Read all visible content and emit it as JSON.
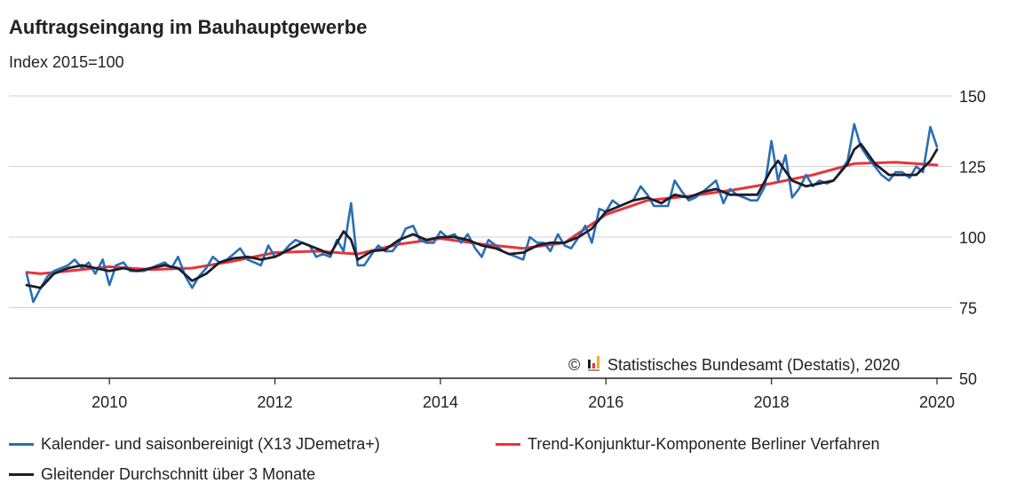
{
  "header": {
    "title": "Auftragseingang im Bauhauptgewerbe",
    "subtitle": "Index 2015=100"
  },
  "source": "Statistisches Bundesamt (Destatis), 2020",
  "colors": {
    "blue": "#2a6eb4",
    "red": "#e8343a",
    "black": "#1b1d2a",
    "grid": "#cfcfcf"
  },
  "chart_data": {
    "type": "line",
    "x_ticks": [
      "2010",
      "2012",
      "2014",
      "2016",
      "2018",
      "2020"
    ],
    "y_ticks": [
      "150",
      "125",
      "100",
      "75",
      "50"
    ],
    "ylim": [
      50,
      150
    ],
    "x_range": [
      2009.0,
      2020.0
    ],
    "grid": true,
    "legend_position": "bottom",
    "series": [
      {
        "name": "Kalender- und saisonbereinigt (X13 JDemetra+)",
        "color": "#2a6eb4",
        "points": [
          [
            2009.0,
            87
          ],
          [
            2009.08,
            77
          ],
          [
            2009.17,
            82
          ],
          [
            2009.25,
            86
          ],
          [
            2009.33,
            88
          ],
          [
            2009.42,
            89
          ],
          [
            2009.5,
            90
          ],
          [
            2009.58,
            92
          ],
          [
            2009.67,
            89
          ],
          [
            2009.75,
            91
          ],
          [
            2009.83,
            87
          ],
          [
            2009.92,
            92
          ],
          [
            2010.0,
            83
          ],
          [
            2010.08,
            90
          ],
          [
            2010.17,
            91
          ],
          [
            2010.25,
            88
          ],
          [
            2010.33,
            88
          ],
          [
            2010.42,
            88
          ],
          [
            2010.5,
            89
          ],
          [
            2010.58,
            90
          ],
          [
            2010.67,
            91
          ],
          [
            2010.75,
            89
          ],
          [
            2010.83,
            93
          ],
          [
            2010.92,
            86
          ],
          [
            2011.0,
            82
          ],
          [
            2011.08,
            86
          ],
          [
            2011.17,
            89
          ],
          [
            2011.25,
            93
          ],
          [
            2011.33,
            91
          ],
          [
            2011.42,
            92
          ],
          [
            2011.5,
            94
          ],
          [
            2011.58,
            96
          ],
          [
            2011.67,
            92
          ],
          [
            2011.75,
            91
          ],
          [
            2011.83,
            90
          ],
          [
            2011.92,
            97
          ],
          [
            2012.0,
            93
          ],
          [
            2012.08,
            94
          ],
          [
            2012.17,
            97
          ],
          [
            2012.25,
            99
          ],
          [
            2012.33,
            98
          ],
          [
            2012.42,
            97
          ],
          [
            2012.5,
            93
          ],
          [
            2012.58,
            94
          ],
          [
            2012.67,
            93
          ],
          [
            2012.75,
            99
          ],
          [
            2012.83,
            95
          ],
          [
            2012.92,
            112
          ],
          [
            2013.0,
            90
          ],
          [
            2013.08,
            90
          ],
          [
            2013.17,
            94
          ],
          [
            2013.25,
            97
          ],
          [
            2013.33,
            95
          ],
          [
            2013.42,
            95
          ],
          [
            2013.5,
            98
          ],
          [
            2013.58,
            103
          ],
          [
            2013.67,
            104
          ],
          [
            2013.75,
            99
          ],
          [
            2013.83,
            98
          ],
          [
            2013.92,
            98
          ],
          [
            2014.0,
            102
          ],
          [
            2014.08,
            100
          ],
          [
            2014.17,
            101
          ],
          [
            2014.25,
            98
          ],
          [
            2014.33,
            101
          ],
          [
            2014.42,
            96
          ],
          [
            2014.5,
            93
          ],
          [
            2014.58,
            99
          ],
          [
            2014.67,
            97
          ],
          [
            2014.75,
            95
          ],
          [
            2014.83,
            94
          ],
          [
            2014.92,
            93
          ],
          [
            2015.0,
            92
          ],
          [
            2015.08,
            100
          ],
          [
            2015.17,
            98
          ],
          [
            2015.25,
            98
          ],
          [
            2015.33,
            95
          ],
          [
            2015.42,
            101
          ],
          [
            2015.5,
            97
          ],
          [
            2015.58,
            96
          ],
          [
            2015.67,
            100
          ],
          [
            2015.75,
            104
          ],
          [
            2015.83,
            98
          ],
          [
            2015.92,
            110
          ],
          [
            2016.0,
            109
          ],
          [
            2016.08,
            113
          ],
          [
            2016.17,
            111
          ],
          [
            2016.25,
            112
          ],
          [
            2016.33,
            113
          ],
          [
            2016.42,
            118
          ],
          [
            2016.5,
            115
          ],
          [
            2016.58,
            111
          ],
          [
            2016.67,
            111
          ],
          [
            2016.75,
            111
          ],
          [
            2016.83,
            120
          ],
          [
            2016.92,
            116
          ],
          [
            2017.0,
            113
          ],
          [
            2017.08,
            114
          ],
          [
            2017.17,
            116
          ],
          [
            2017.25,
            118
          ],
          [
            2017.33,
            120
          ],
          [
            2017.42,
            112
          ],
          [
            2017.5,
            117
          ],
          [
            2017.58,
            115
          ],
          [
            2017.67,
            114
          ],
          [
            2017.75,
            113
          ],
          [
            2017.83,
            113
          ],
          [
            2017.92,
            118
          ],
          [
            2018.0,
            134
          ],
          [
            2018.08,
            120
          ],
          [
            2018.17,
            129
          ],
          [
            2018.25,
            114
          ],
          [
            2018.33,
            117
          ],
          [
            2018.42,
            122
          ],
          [
            2018.5,
            118
          ],
          [
            2018.58,
            120
          ],
          [
            2018.67,
            119
          ],
          [
            2018.75,
            120
          ],
          [
            2018.83,
            123
          ],
          [
            2018.92,
            127
          ],
          [
            2019.0,
            140
          ],
          [
            2019.08,
            132
          ],
          [
            2019.17,
            128
          ],
          [
            2019.25,
            125
          ],
          [
            2019.33,
            122
          ],
          [
            2019.42,
            120
          ],
          [
            2019.5,
            123
          ],
          [
            2019.58,
            123
          ],
          [
            2019.67,
            121
          ],
          [
            2019.75,
            125
          ],
          [
            2019.83,
            123
          ],
          [
            2019.92,
            139
          ],
          [
            2020.0,
            132
          ]
        ]
      },
      {
        "name": "Trend-Konjunktur-Komponente Berliner Verfahren",
        "color": "#e8343a",
        "points": [
          [
            2009.0,
            87.5
          ],
          [
            2009.17,
            87.0
          ],
          [
            2009.5,
            88.0
          ],
          [
            2010.0,
            89.5
          ],
          [
            2010.5,
            88.5
          ],
          [
            2011.0,
            89.0
          ],
          [
            2011.5,
            91.5
          ],
          [
            2012.0,
            94.5
          ],
          [
            2012.5,
            95.0
          ],
          [
            2013.0,
            94.0
          ],
          [
            2013.5,
            97.5
          ],
          [
            2014.0,
            99.5
          ],
          [
            2014.5,
            97.5
          ],
          [
            2015.0,
            96.0
          ],
          [
            2015.5,
            98.0
          ],
          [
            2016.0,
            108.0
          ],
          [
            2016.5,
            113.0
          ],
          [
            2017.0,
            114.5
          ],
          [
            2017.5,
            116.5
          ],
          [
            2018.0,
            119.0
          ],
          [
            2018.5,
            122.0
          ],
          [
            2019.0,
            126.0
          ],
          [
            2019.5,
            126.5
          ],
          [
            2020.0,
            125.5
          ]
        ]
      },
      {
        "name": "Gleitender Durchschnitt über 3 Monate",
        "color": "#1b1d2a",
        "points": [
          [
            2009.0,
            83
          ],
          [
            2009.17,
            82
          ],
          [
            2009.33,
            87
          ],
          [
            2009.5,
            89
          ],
          [
            2009.67,
            90
          ],
          [
            2009.83,
            89
          ],
          [
            2010.0,
            88
          ],
          [
            2010.17,
            89
          ],
          [
            2010.33,
            88
          ],
          [
            2010.5,
            89
          ],
          [
            2010.67,
            90
          ],
          [
            2010.83,
            89
          ],
          [
            2011.0,
            84.5
          ],
          [
            2011.17,
            87
          ],
          [
            2011.33,
            91
          ],
          [
            2011.5,
            92.5
          ],
          [
            2011.67,
            93
          ],
          [
            2011.83,
            92
          ],
          [
            2012.0,
            93
          ],
          [
            2012.17,
            95.5
          ],
          [
            2012.33,
            98
          ],
          [
            2012.5,
            96
          ],
          [
            2012.67,
            94
          ],
          [
            2012.83,
            102
          ],
          [
            2012.92,
            99
          ],
          [
            2013.0,
            92
          ],
          [
            2013.17,
            95
          ],
          [
            2013.33,
            95.5
          ],
          [
            2013.5,
            99
          ],
          [
            2013.67,
            101
          ],
          [
            2013.83,
            99
          ],
          [
            2014.0,
            100
          ],
          [
            2014.17,
            100
          ],
          [
            2014.33,
            99
          ],
          [
            2014.5,
            97
          ],
          [
            2014.67,
            96
          ],
          [
            2014.83,
            94
          ],
          [
            2015.0,
            94.5
          ],
          [
            2015.17,
            97
          ],
          [
            2015.33,
            98
          ],
          [
            2015.5,
            98
          ],
          [
            2015.67,
            100
          ],
          [
            2015.83,
            103
          ],
          [
            2016.0,
            109
          ],
          [
            2016.17,
            111
          ],
          [
            2016.33,
            113
          ],
          [
            2016.5,
            114
          ],
          [
            2016.67,
            112
          ],
          [
            2016.83,
            115
          ],
          [
            2017.0,
            114
          ],
          [
            2017.17,
            116
          ],
          [
            2017.33,
            117
          ],
          [
            2017.5,
            115
          ],
          [
            2017.67,
            115
          ],
          [
            2017.83,
            115
          ],
          [
            2018.0,
            124
          ],
          [
            2018.08,
            127
          ],
          [
            2018.25,
            120
          ],
          [
            2018.42,
            118
          ],
          [
            2018.58,
            119
          ],
          [
            2018.75,
            120
          ],
          [
            2018.92,
            126
          ],
          [
            2019.0,
            131
          ],
          [
            2019.08,
            133
          ],
          [
            2019.25,
            126
          ],
          [
            2019.42,
            122
          ],
          [
            2019.58,
            122
          ],
          [
            2019.75,
            122
          ],
          [
            2019.92,
            127
          ],
          [
            2020.0,
            131
          ]
        ]
      }
    ]
  }
}
